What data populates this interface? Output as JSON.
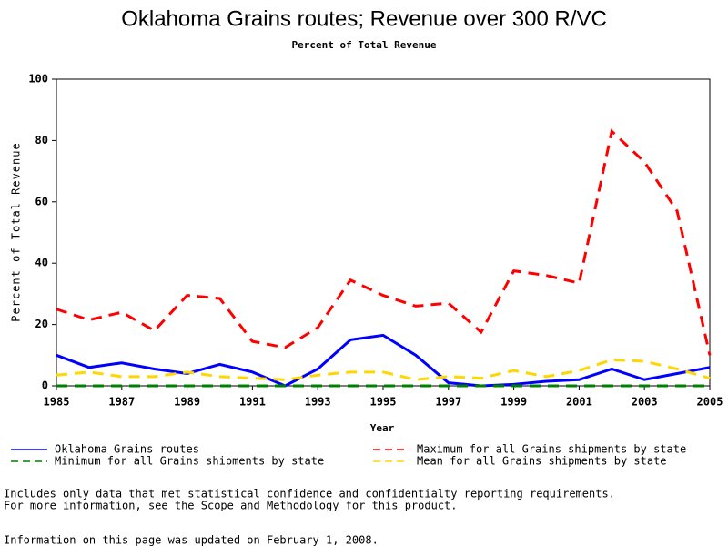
{
  "chart_data": {
    "type": "line",
    "title": "Oklahoma Grains routes; Revenue over 300 R/VC",
    "subtitle": "Percent of Total Revenue",
    "x_label": "Year",
    "y_label": "Percent of Total Revenue",
    "x": [
      1985,
      1986,
      1987,
      1988,
      1989,
      1990,
      1991,
      1992,
      1993,
      1994,
      1995,
      1996,
      1997,
      1998,
      1999,
      2000,
      2001,
      2002,
      2003,
      2004,
      2005
    ],
    "xlim": [
      1985,
      2005
    ],
    "xticks": [
      1985,
      1987,
      1989,
      1991,
      1993,
      1995,
      1997,
      1999,
      2001,
      2003,
      2005
    ],
    "ylim": [
      0,
      100
    ],
    "yticks": [
      0,
      20,
      40,
      60,
      80,
      100
    ],
    "series": [
      {
        "name": "Oklahoma Grains routes",
        "color": "#0000ff",
        "line_style": "solid",
        "values": [
          10,
          6,
          7.5,
          5.5,
          4,
          7,
          4.5,
          0,
          5.5,
          15,
          16.5,
          10,
          1,
          0,
          0.5,
          1.5,
          2,
          5.5,
          2,
          4,
          6
        ]
      },
      {
        "name": "Maximum for all Grains shipments by state",
        "color": "#ff0000",
        "line_style": "dashed",
        "values": [
          25,
          21.5,
          24,
          18,
          29.5,
          28.5,
          14.5,
          12.5,
          19,
          34.5,
          29.5,
          26,
          27,
          17.5,
          37.5,
          36,
          33.5,
          83,
          73,
          57,
          10
        ]
      },
      {
        "name": "Minimum for all Grains shipments by state",
        "color": "#008000",
        "line_style": "dashed",
        "values": [
          0,
          0,
          0,
          0,
          0,
          0,
          0,
          0,
          0,
          0,
          0,
          0,
          0,
          0,
          0,
          0,
          0,
          0,
          0,
          0,
          0
        ]
      },
      {
        "name": "Mean for all Grains shipments by state",
        "color": "#ffd700",
        "line_style": "dashed",
        "values": [
          3.5,
          4.5,
          3,
          3,
          4.5,
          3,
          2.5,
          2,
          3.5,
          4.5,
          4.5,
          2,
          3,
          2.5,
          5,
          3,
          5,
          8.5,
          8,
          5.5,
          2.5
        ]
      }
    ],
    "notes": [
      "Includes only data that met statistical confidence and confidentialty reporting requirements.",
      "For more information, see the Scope and Methodology for this product.",
      "Information on this page was updated on February 1, 2008."
    ]
  }
}
